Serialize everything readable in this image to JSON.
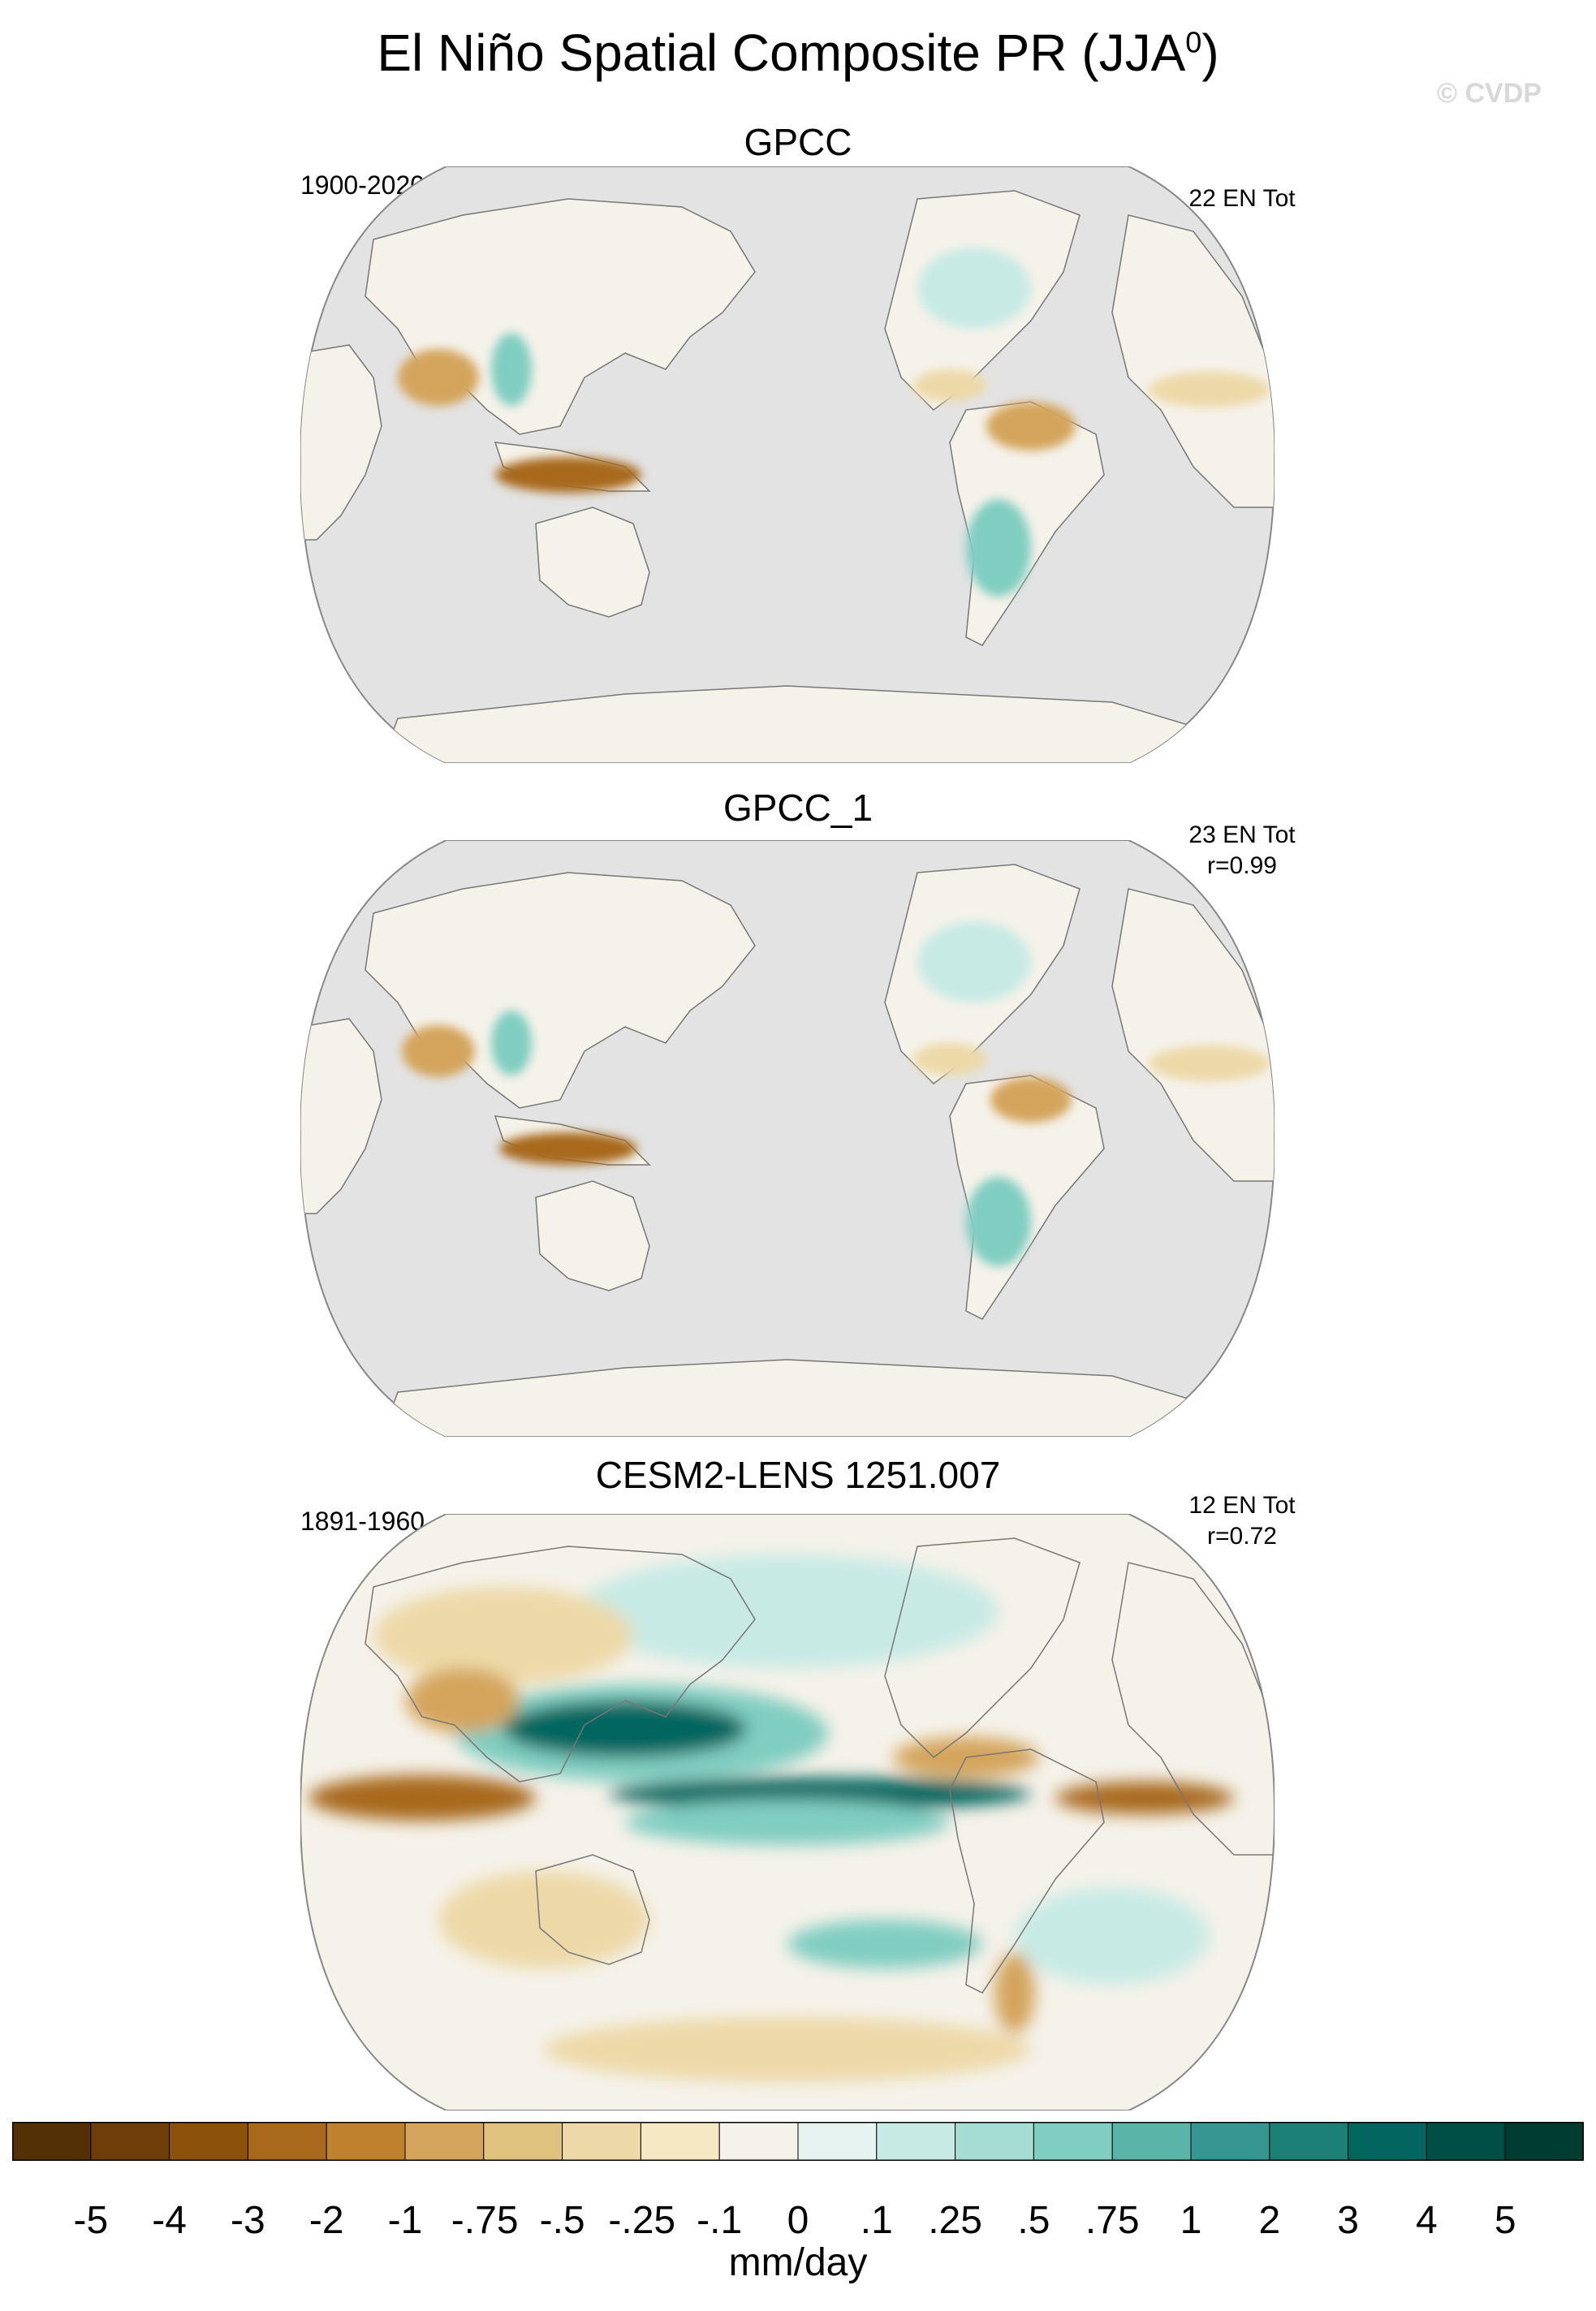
{
  "figure": {
    "title": "El Niño Spatial Composite PR (JJA",
    "title_superscript": "0",
    "title_suffix": ")",
    "watermark": "© CVDP"
  },
  "panels": [
    {
      "title": "GPCC",
      "period": "1900-2020",
      "count_label": "22 EN Tot",
      "corr_label": ""
    },
    {
      "title": "GPCC_1",
      "period": "",
      "count_label": "23 EN Tot",
      "corr_label": "r=0.99"
    },
    {
      "title": "CESM2-LENS 1251.007",
      "period": "1891-1960",
      "count_label": "12 EN Tot",
      "corr_label": "r=0.72"
    }
  ],
  "colorbar": {
    "unit": "mm/day",
    "labels": [
      "-5",
      "-4",
      "-3",
      "-2",
      "-1",
      "-.75",
      "-.5",
      "-.25",
      "-.1",
      "0",
      ".1",
      ".25",
      ".5",
      ".75",
      "1",
      "2",
      "3",
      "4",
      "5"
    ],
    "colors": [
      "#543005",
      "#6e3d0a",
      "#8c510a",
      "#a8691c",
      "#bf812d",
      "#d4a45c",
      "#dfc27d",
      "#edd9a8",
      "#f6e8c3",
      "#f5f2ea",
      "#e6f3f1",
      "#c7eae5",
      "#a6ddd3",
      "#80cdc1",
      "#5ab4a8",
      "#35978f",
      "#1d8077",
      "#01665e",
      "#004f46",
      "#003c30"
    ]
  },
  "map_colors": {
    "ocean": "#e3e3e3",
    "land_neutral": "#f5f2ea",
    "outline": "#777777",
    "dry_light": "#edd9a8",
    "dry_mid": "#d4a45c",
    "dry_strong": "#a8691c",
    "wet_light": "#c7eae5",
    "wet_mid": "#80cdc1",
    "wet_strong": "#01665e"
  }
}
